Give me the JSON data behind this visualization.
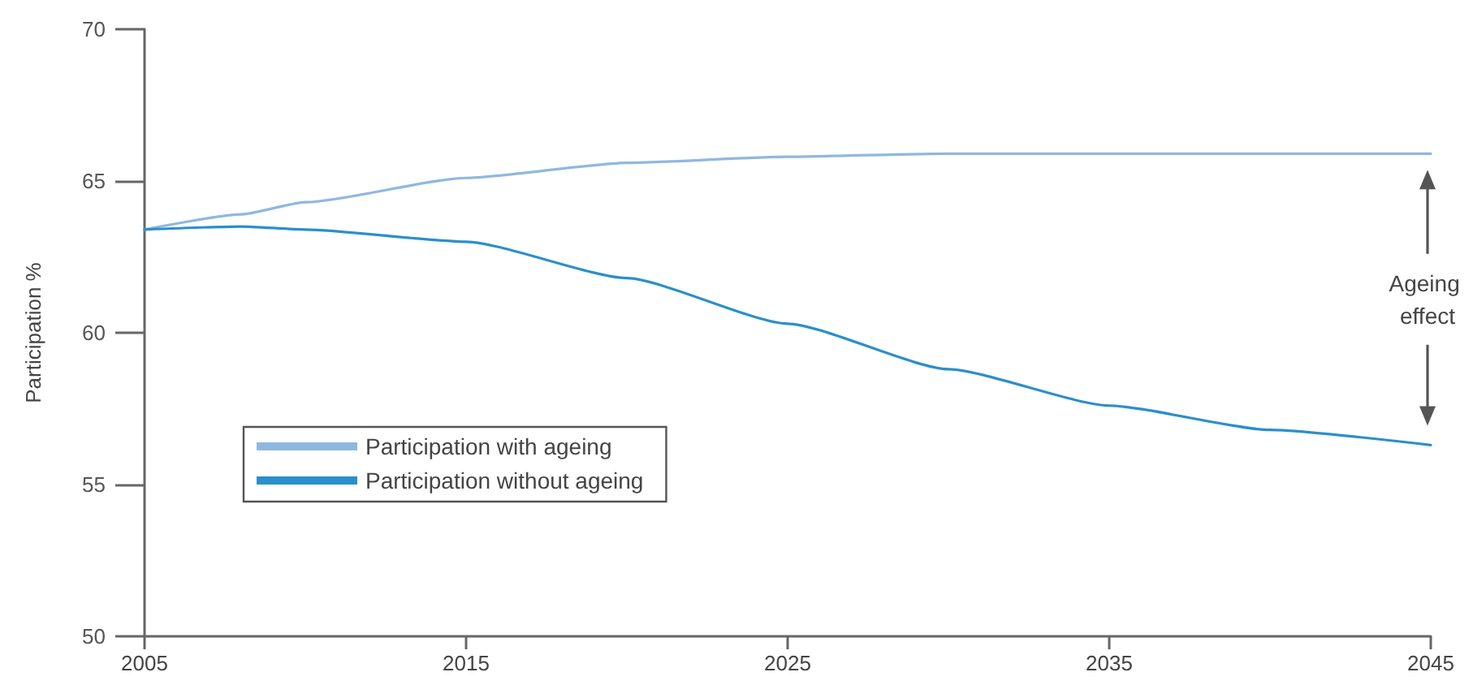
{
  "chart_data": {
    "type": "line",
    "ylabel": "Participation %",
    "x": [
      2005,
      2008,
      2010,
      2015,
      2020,
      2025,
      2030,
      2035,
      2040,
      2045
    ],
    "series": [
      {
        "name": "Participation with ageing",
        "color": "#8fb8df",
        "values": [
          63.4,
          63.9,
          64.3,
          65.1,
          65.6,
          65.8,
          65.9,
          65.9,
          65.9,
          65.9
        ]
      },
      {
        "name": "Participation without ageing",
        "color": "#2a8fcb",
        "values": [
          63.4,
          63.5,
          63.4,
          63.0,
          61.8,
          60.3,
          58.8,
          57.6,
          56.8,
          56.3
        ]
      }
    ],
    "xlim": [
      2005,
      2045
    ],
    "xticks": [
      2005,
      2015,
      2025,
      2035,
      2045
    ],
    "ylim": [
      50,
      70
    ],
    "yticks": [
      50,
      55,
      60,
      65,
      70
    ],
    "annotations": [
      "Ageing effect"
    ],
    "grid": false,
    "legend": "bottom left",
    "marker": "none",
    "line_style": "solid"
  }
}
